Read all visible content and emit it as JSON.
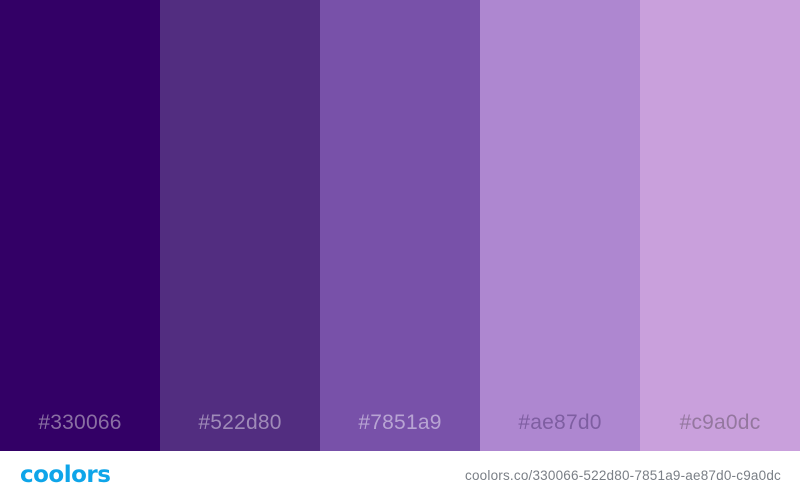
{
  "palette": {
    "swatches": [
      {
        "hex": "#330066",
        "color": "#330066",
        "label_color": "#8a6fa3"
      },
      {
        "hex": "#522d80",
        "color": "#522d80",
        "label_color": "#9f8ab8"
      },
      {
        "hex": "#7851a9",
        "color": "#7851a9",
        "label_color": "#b8a4d3"
      },
      {
        "hex": "#ae87d0",
        "color": "#ae87d0",
        "label_color": "#7e5ea1"
      },
      {
        "hex": "#c9a0dc",
        "color": "#c9a0dc",
        "label_color": "#94779f"
      }
    ]
  },
  "footer": {
    "logo_text": "coolors",
    "logo_color": "#0ea5e9",
    "url": "coolors.co/330066-522d80-7851a9-ae87d0-c9a0dc",
    "url_color": "#7a7f86"
  }
}
